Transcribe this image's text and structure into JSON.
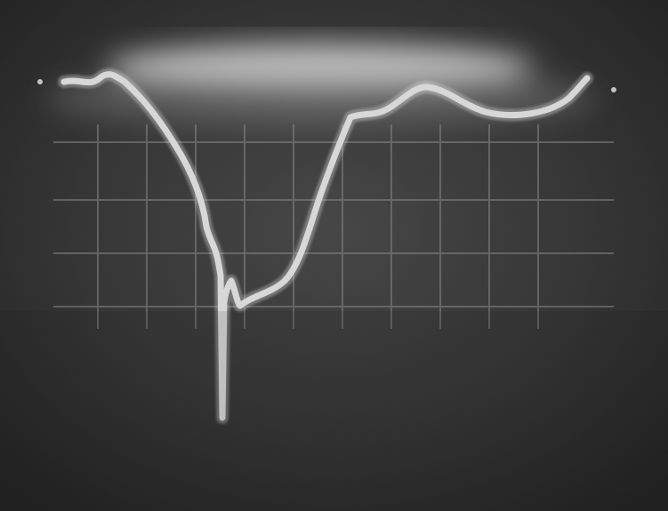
{
  "image": {
    "kind": "oscilloscope-photograph",
    "colors": {
      "screen_bg": "#2b2b2b",
      "screen_dark": "#111111",
      "glow": "#efefef",
      "grid": "#8e8e8e",
      "trace": "#f6f6f6"
    },
    "grid": true
  }
}
